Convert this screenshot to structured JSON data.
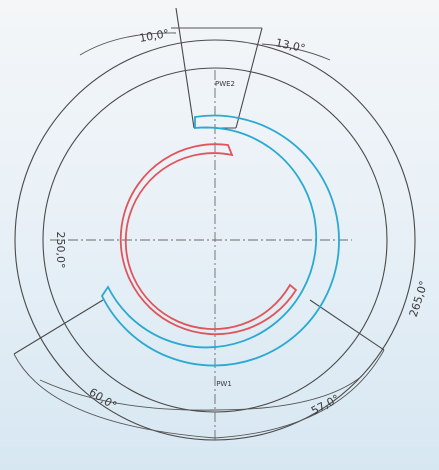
{
  "colors": {
    "pole_1": "#e0555c",
    "pole_2": "#2aa9d2",
    "ink": "#4a4a4a"
  },
  "dimensions": {
    "top_left": "10,0°",
    "top_right": "13,0°",
    "left": "250,0°",
    "right": "265,0°",
    "bottom_left": "60,0°",
    "bottom_right": "57,0°"
  },
  "tags": {
    "top": "PWE2",
    "bottom": "PW1"
  }
}
